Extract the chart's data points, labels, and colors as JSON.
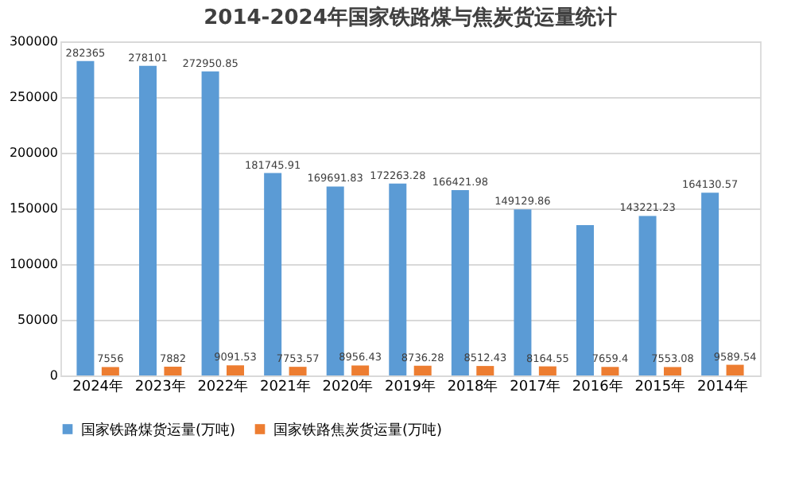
{
  "chart_data": {
    "type": "bar",
    "title": "2014-2024年国家铁路煤与焦炭货运量统计",
    "categories": [
      "2024年",
      "2023年",
      "2022年",
      "2021年",
      "2020年",
      "2019年",
      "2018年",
      "2017年",
      "2016年",
      "2015年",
      "2014年"
    ],
    "series": [
      {
        "name": "国家铁路煤货运量(万吨)",
        "color": "#5b9bd5",
        "values": [
          282365,
          278101,
          272950.85,
          181745.91,
          169691.83,
          172263.28,
          166421.98,
          149129.86,
          135000,
          143221.23,
          164130.57
        ],
        "value_labels": [
          "282365",
          "278101",
          "272950.85",
          "181745.91",
          "169691.83",
          "172263.28",
          "166421.98",
          "149129.86",
          null,
          "143221.23",
          "164130.57"
        ]
      },
      {
        "name": "国家铁路焦炭货运量(万吨)",
        "color": "#ed7d31",
        "values": [
          7556,
          7882,
          9091.53,
          7753.57,
          8956.43,
          8736.28,
          8512.43,
          8164.55,
          7659.4,
          7553.08,
          9589.54
        ],
        "value_labels": [
          "7556",
          "7882",
          "9091.53",
          "7753.57",
          "8956.43",
          "8736.28",
          "8512.43",
          "8164.55",
          "7659.4",
          "7553.08",
          "9589.54"
        ]
      }
    ],
    "ylim": [
      0,
      300000
    ],
    "yticks": [
      0,
      50000,
      100000,
      150000,
      200000,
      250000,
      300000
    ],
    "grid": "y",
    "legend": "bottom"
  }
}
